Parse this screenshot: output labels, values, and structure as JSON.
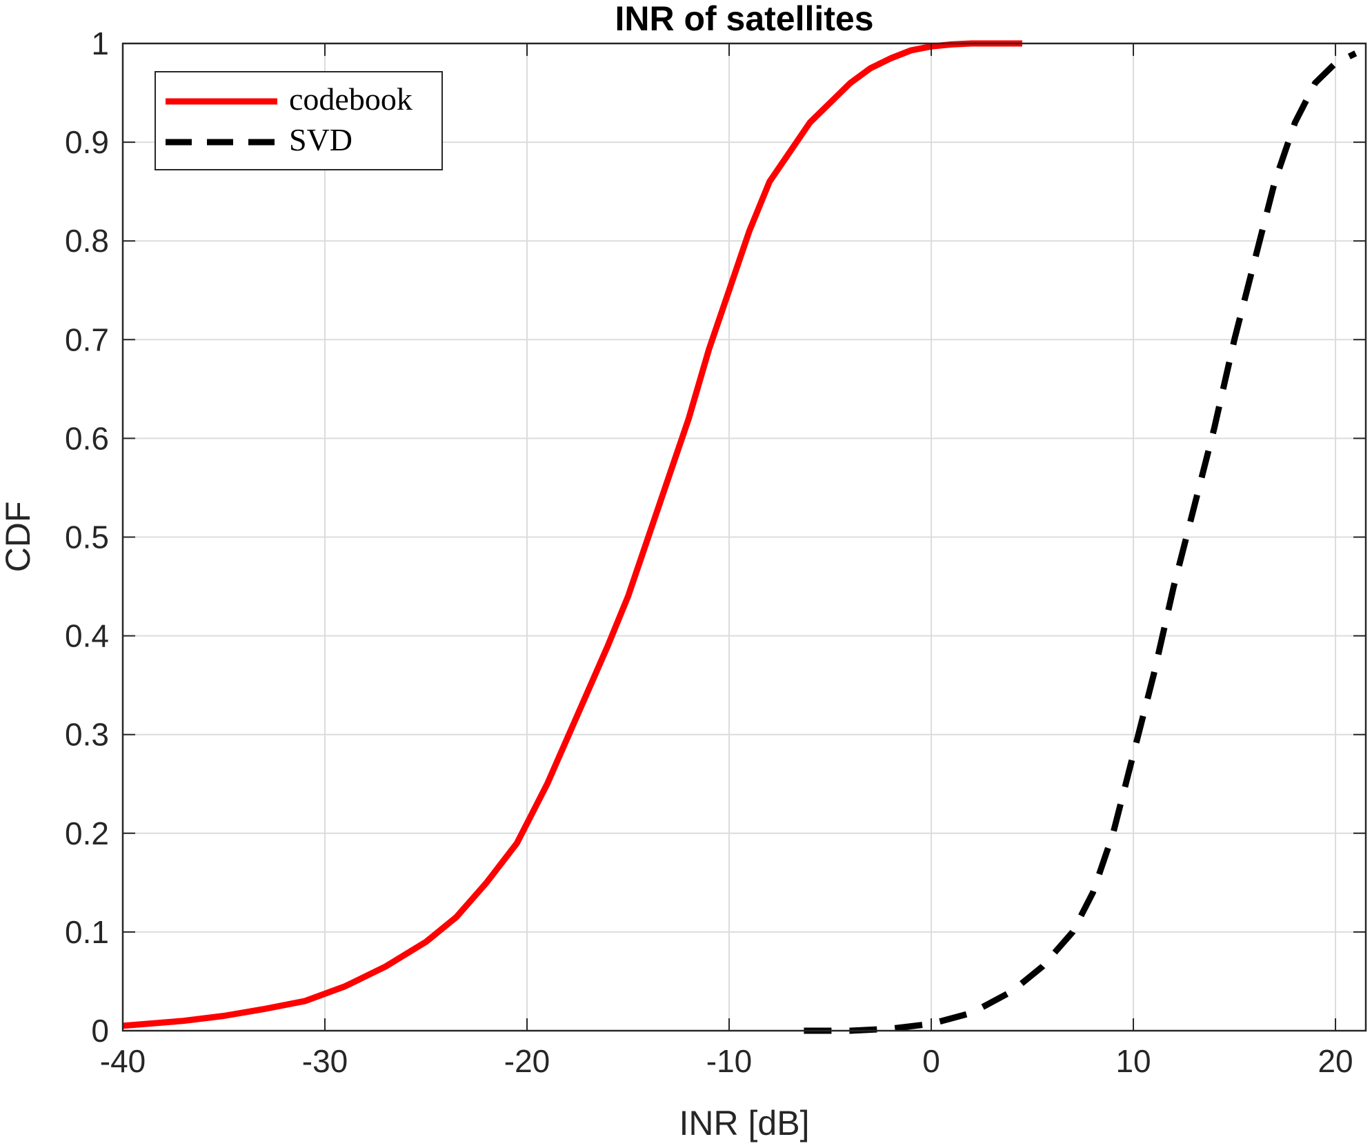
{
  "chart_data": {
    "type": "line",
    "title": "INR of satellites",
    "xlabel": "INR [dB]",
    "ylabel": "CDF",
    "xlim": [
      -40,
      21.5
    ],
    "ylim": [
      0,
      1
    ],
    "xticks": [
      -40,
      -30,
      -20,
      -10,
      0,
      10,
      20
    ],
    "yticks": [
      0,
      0.1,
      0.2,
      0.3,
      0.4,
      0.5,
      0.6,
      0.7,
      0.8,
      0.9,
      1
    ],
    "xtick_labels": [
      "-40",
      "-30",
      "-20",
      "-10",
      "0",
      "10",
      "20"
    ],
    "ytick_labels": [
      "0",
      "0.1",
      "0.2",
      "0.3",
      "0.4",
      "0.5",
      "0.6",
      "0.7",
      "0.8",
      "0.9",
      "1"
    ],
    "grid": true,
    "legend": {
      "location": "top-left",
      "entries": [
        "codebook",
        "SVD"
      ]
    },
    "series": [
      {
        "name": "codebook",
        "color": "#ff0000",
        "style": "solid",
        "x": [
          -40,
          -37,
          -35,
          -33,
          -31,
          -29,
          -27,
          -25,
          -23.5,
          -22,
          -20.5,
          -19,
          -17.5,
          -16,
          -15,
          -14,
          -13,
          -12,
          -11,
          -10,
          -9,
          -8,
          -7,
          -6,
          -5,
          -4,
          -3,
          -2,
          -1,
          0,
          1,
          2,
          3,
          4.5
        ],
        "y": [
          0.005,
          0.01,
          0.015,
          0.022,
          0.03,
          0.045,
          0.065,
          0.09,
          0.115,
          0.15,
          0.19,
          0.25,
          0.32,
          0.39,
          0.44,
          0.5,
          0.56,
          0.62,
          0.69,
          0.75,
          0.81,
          0.86,
          0.89,
          0.92,
          0.94,
          0.96,
          0.975,
          0.985,
          0.993,
          0.997,
          0.999,
          1.0,
          1.0,
          1.0
        ]
      },
      {
        "name": "SVD",
        "color": "#000000",
        "style": "dashed",
        "x": [
          -6.3,
          -4,
          -2,
          0,
          2,
          4,
          5.5,
          7,
          8,
          9,
          10,
          11,
          12,
          13,
          14,
          15,
          16,
          17,
          18,
          19,
          20,
          21
        ],
        "y": [
          0.0,
          0.0,
          0.002,
          0.007,
          0.018,
          0.04,
          0.065,
          0.1,
          0.14,
          0.2,
          0.28,
          0.36,
          0.45,
          0.53,
          0.61,
          0.7,
          0.78,
          0.86,
          0.92,
          0.96,
          0.98,
          0.99
        ]
      }
    ]
  }
}
